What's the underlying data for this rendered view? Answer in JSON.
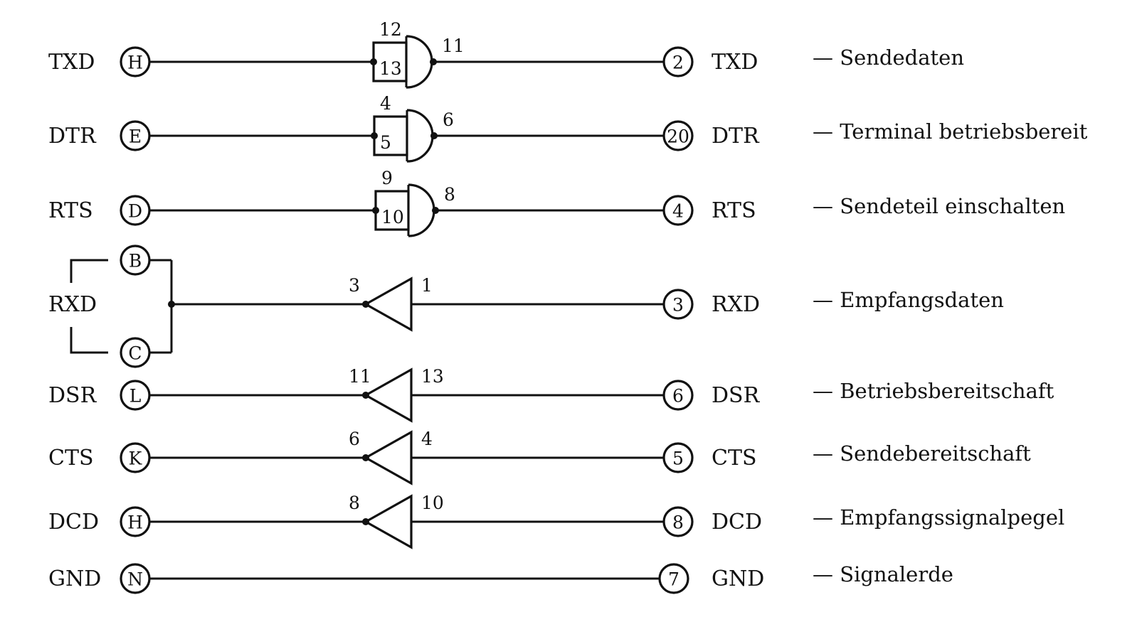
{
  "rows": [
    {
      "kind": "nand",
      "left_label": "TXD",
      "left_pin": "H",
      "in_a": "12",
      "in_b": "13",
      "out": "11",
      "right_pin": "2",
      "right_label": "TXD",
      "desc": "— Sendedaten"
    },
    {
      "kind": "nand",
      "left_label": "DTR",
      "left_pin": "E",
      "in_a": "4",
      "in_b": "5",
      "out": "6",
      "right_pin": "20",
      "right_label": "DTR",
      "desc": "— Terminal betriebsbereit"
    },
    {
      "kind": "nand",
      "left_label": "RTS",
      "left_pin": "D",
      "in_a": "9",
      "in_b": "10",
      "out": "8",
      "right_pin": "4",
      "right_label": "RTS",
      "desc": "— Sendeteil einschalten"
    },
    {
      "kind": "rxd",
      "left_label": "RXD",
      "left_pin_top": "B",
      "left_pin_bottom": "C",
      "buf_out": "3",
      "buf_in": "1",
      "right_pin": "3",
      "right_label": "RXD",
      "desc": "— Empfangsdaten"
    },
    {
      "kind": "buf",
      "left_label": "DSR",
      "left_pin": "L",
      "buf_out": "11",
      "buf_in": "13",
      "right_pin": "6",
      "right_label": "DSR",
      "desc": "— Betriebsbereitschaft"
    },
    {
      "kind": "buf",
      "left_label": "CTS",
      "left_pin": "K",
      "buf_out": "6",
      "buf_in": "4",
      "right_pin": "5",
      "right_label": "CTS",
      "desc": "— Sendebereitschaft"
    },
    {
      "kind": "buf",
      "left_label": "DCD",
      "left_pin": "H",
      "buf_out": "8",
      "buf_in": "10",
      "right_pin": "8",
      "right_label": "DCD",
      "desc": "— Empfangssignalpegel"
    },
    {
      "kind": "wire",
      "left_label": "GND",
      "left_pin": "N",
      "right_pin": "7",
      "right_label": "GND",
      "desc": "— Signalerde"
    }
  ]
}
